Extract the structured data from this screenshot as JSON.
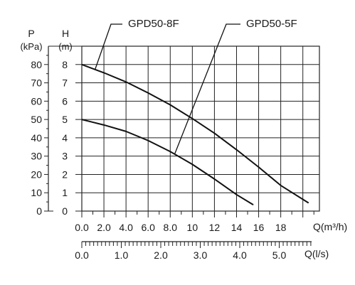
{
  "chart_data": {
    "type": "line",
    "axes": {
      "p_label": "P",
      "p_unit": "(kPa)",
      "h_label": "H",
      "h_unit": "(m)",
      "h_range": [
        0,
        8
      ],
      "p_ticks": [
        "0",
        "10",
        "20",
        "30",
        "40",
        "50",
        "60",
        "70",
        "80"
      ],
      "h_ticks": [
        "0",
        "1",
        "2",
        "3",
        "4",
        "5",
        "6",
        "7",
        "8"
      ],
      "q_m3h_label": "Q(m³/h)",
      "q_m3h_range": [
        0,
        21
      ],
      "q_m3h_ticks": [
        "0.0",
        "2.0",
        "4.0",
        "6.0",
        "8.0",
        "10",
        "12",
        "14",
        "16",
        "18"
      ],
      "q_ls_label": "Q(l/s)",
      "q_ls_ticks": [
        "0.0",
        "1.0",
        "2.0",
        "3.0",
        "4.0",
        "5.0"
      ]
    },
    "grid": true,
    "series": [
      {
        "name": "GPD50-8F",
        "x": [
          0,
          2,
          4,
          6,
          8,
          10,
          12,
          14,
          16,
          18,
          20.5
        ],
        "y": [
          8.0,
          7.55,
          7.05,
          6.45,
          5.8,
          5.05,
          4.25,
          3.35,
          2.4,
          1.4,
          0.45
        ]
      },
      {
        "name": "GPD50-5F",
        "x": [
          0,
          2,
          4,
          6,
          8,
          10,
          12,
          14,
          15.5
        ],
        "y": [
          5.0,
          4.7,
          4.35,
          3.85,
          3.25,
          2.55,
          1.75,
          0.9,
          0.35
        ]
      }
    ]
  }
}
